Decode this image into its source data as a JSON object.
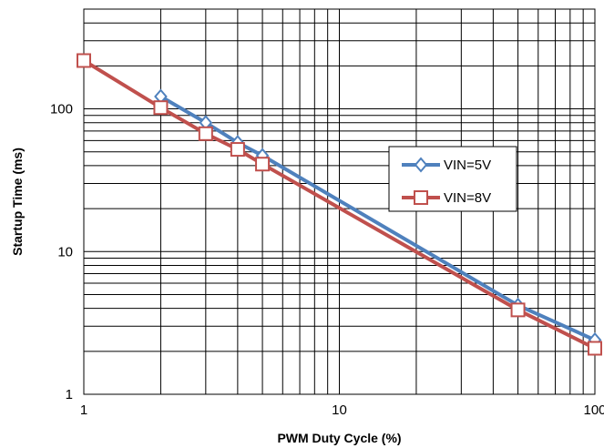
{
  "chart_data": {
    "type": "line",
    "xlabel": "PWM Duty Cycle  (%)",
    "ylabel": "Startup Time  (ms)",
    "xscale": "log",
    "yscale": "log",
    "xlim": [
      1,
      100
    ],
    "ylim": [
      1,
      500
    ],
    "xticks": [
      {
        "value": 1,
        "label": "1"
      },
      {
        "value": 10,
        "label": "10"
      },
      {
        "value": 100,
        "label": "100"
      }
    ],
    "yticks": [
      {
        "value": 1,
        "label": "1"
      },
      {
        "value": 10,
        "label": "10"
      },
      {
        "value": 100,
        "label": "100"
      }
    ],
    "grid": true,
    "legend_position": "right",
    "series": [
      {
        "name": "VIN=5V",
        "color": "#4f81bd",
        "marker": "diamond",
        "x": [
          2,
          3,
          4,
          5,
          50,
          100
        ],
        "y": [
          122,
          80,
          58,
          47,
          4.2,
          2.4
        ]
      },
      {
        "name": "VIN=8V",
        "color": "#c0504d",
        "marker": "square",
        "x": [
          1,
          2,
          3,
          4,
          5,
          50,
          100
        ],
        "y": [
          218,
          102,
          67,
          52,
          41,
          3.9,
          2.1
        ]
      }
    ]
  }
}
